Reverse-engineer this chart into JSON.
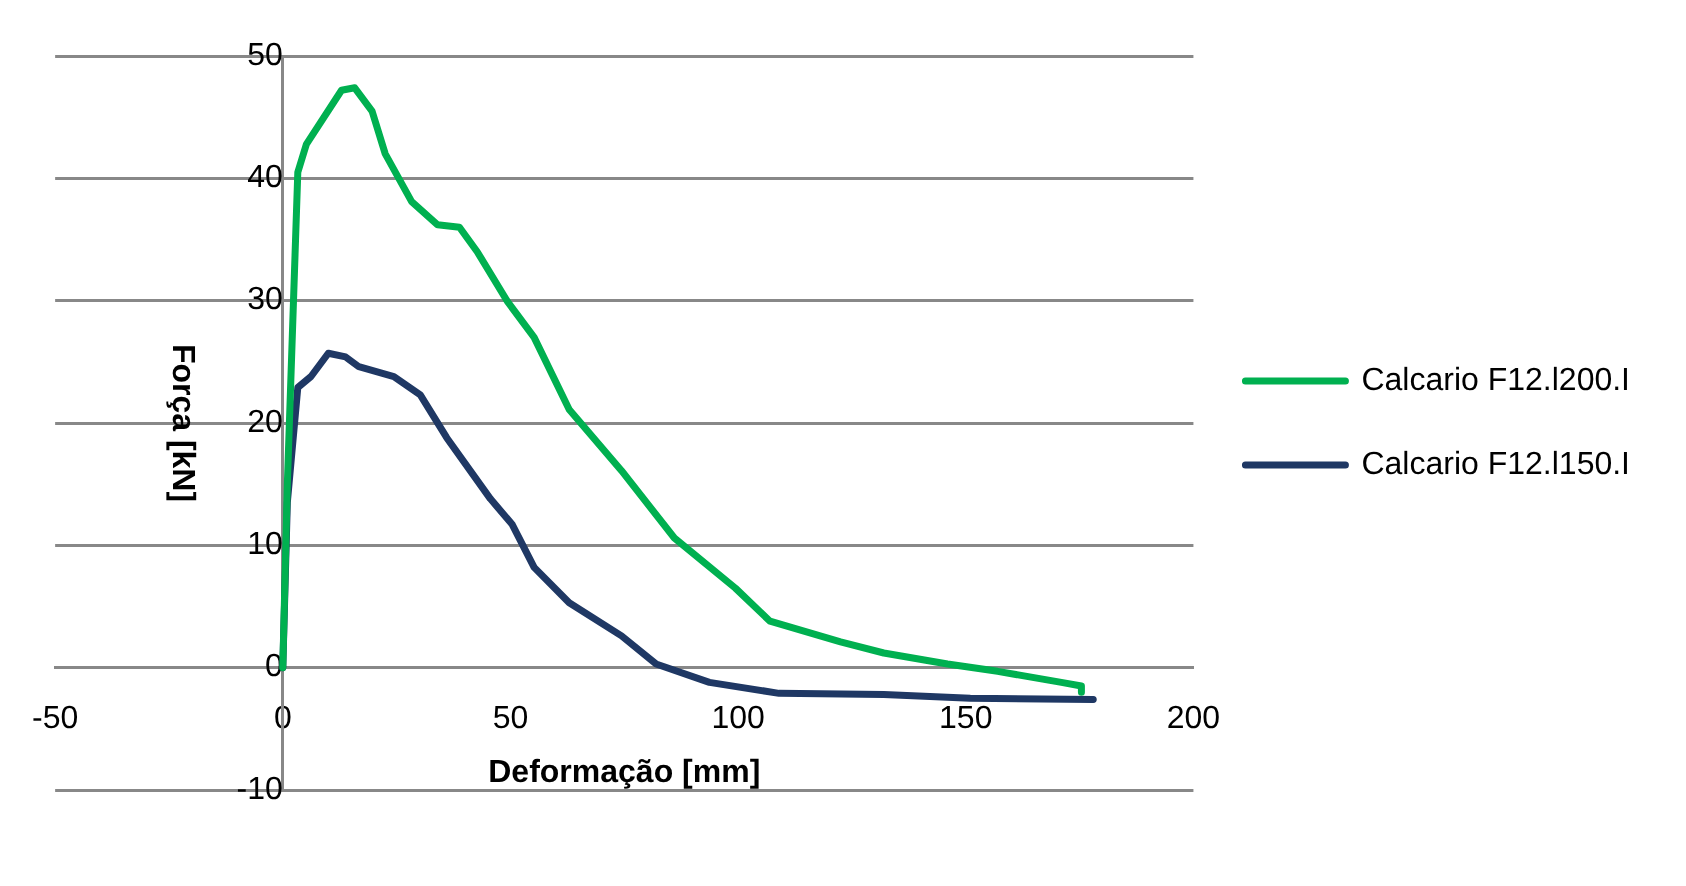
{
  "chart_data": {
    "type": "line",
    "xlabel": "Deformação [mm]",
    "ylabel": "Força [kN]",
    "xlim": [
      -50,
      200
    ],
    "xticks": [
      -50,
      0,
      50,
      100,
      150,
      200
    ],
    "ylim": [
      -10,
      50
    ],
    "yticks": [
      -10,
      0,
      10,
      20,
      30,
      40,
      50
    ],
    "grid": "y",
    "legend": "right",
    "marker": "none",
    "line_style": "solid",
    "series": [
      {
        "name": "Calcario F12.l200.I",
        "color": "#00b050",
        "x": [
          0,
          1,
          3.3,
          5.2,
          12.9,
          15.8,
          19.6,
          22.5,
          28.3,
          34,
          38.8,
          42.7,
          49.4,
          55.2,
          62.9,
          74.4,
          86,
          99.4,
          107,
          122.5,
          132,
          146,
          157,
          171,
          175.4,
          175.4
        ],
        "values": [
          0,
          15,
          40.5,
          42.8,
          47.2,
          47.4,
          45.5,
          42,
          38.1,
          36.2,
          36,
          34,
          29.9,
          27,
          21.1,
          16.1,
          10.6,
          6.5,
          3.8,
          2.1,
          1.2,
          0.3,
          -0.3,
          -1.2,
          -1.5,
          -2
        ]
      },
      {
        "name": "Calcario F12.l150.I",
        "color": "#1f3864",
        "x": [
          0,
          1,
          3.3,
          6.2,
          10,
          13.8,
          16.7,
          24.4,
          30.2,
          36,
          45.6,
          50.4,
          55.2,
          62.9,
          74.4,
          82,
          93.7,
          109,
          132,
          151,
          178
        ],
        "values": [
          0,
          13.5,
          22.9,
          23.8,
          25.7,
          25.4,
          24.6,
          23.8,
          22.3,
          18.8,
          13.8,
          11.7,
          8.2,
          5.3,
          2.6,
          0.3,
          -1.2,
          -2.1,
          -2.2,
          -2.5,
          -2.6
        ]
      }
    ]
  }
}
